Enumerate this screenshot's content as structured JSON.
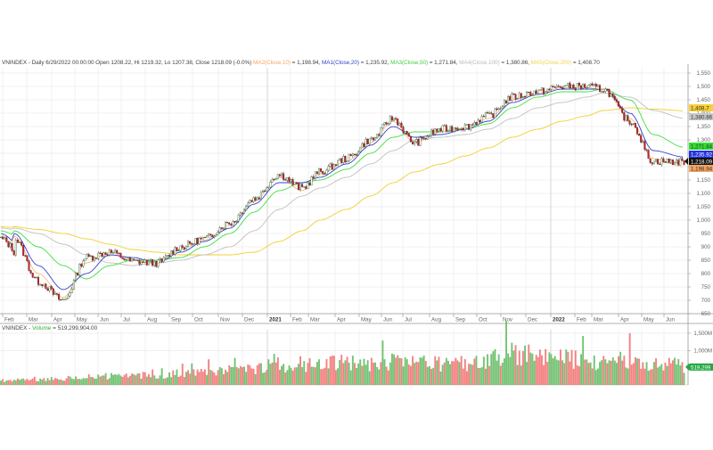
{
  "header": {
    "symbol": "VNINDEX",
    "summary": "VNINDEX - Daily 6/29/2022 00:00:00 Open 1208.22, Hi 1219.32, Lo 1207.38, Close 1218.09 (-0.0%)",
    "ma2_label": "MA2(Close,10)",
    "ma2_value": " = 1,198.94, ",
    "ma1_label": "MA1(Close,20)",
    "ma1_value": " = 1,235.92, ",
    "ma3_label": "MA3(Close,50)",
    "ma3_value": " = 1,271.84, ",
    "ma4_label": "MA4(Close,100)",
    "ma4_value": " = 1,380.86, ",
    "ma5_label": "MA5(Close,200)",
    "ma5_value": " = 1,408.70"
  },
  "volume_panel": {
    "prefix": "VNINDEX - ",
    "label": "Volume",
    "value": " = 519,299,904.00",
    "tag": "519,299",
    "axis_ticks": [
      "1,500M",
      "1,000M"
    ]
  },
  "price_tags": {
    "ma5": {
      "text": "1,408.7",
      "color": "#f7d038"
    },
    "ma4": {
      "text": "1,380.86",
      "color": "#c8c8c8"
    },
    "ma3": {
      "text": "1,271.84",
      "color": "#33dd33"
    },
    "ma1": {
      "text": "1,235.92",
      "color": "#2233dd"
    },
    "close": {
      "text": "1,218.09",
      "color": "#111111"
    },
    "ma2": {
      "text": "1,198.94",
      "color": "#f5a462"
    }
  },
  "colors": {
    "up_volume": "#5cb85c",
    "down_volume": "#f26b6b",
    "grid": "#e6e6e6",
    "ma1": "#3344cc",
    "ma2": "#f5a462",
    "ma3": "#44dd44",
    "ma4": "#c0c0c0",
    "ma5": "#f0d030"
  },
  "chart_data": {
    "type": "line",
    "title": "VNINDEX - Daily",
    "xlabel": "",
    "ylabel": "",
    "ylim": [
      650,
      1550
    ],
    "y_ticks": [
      1550,
      1500,
      1450,
      1400,
      1350,
      1300,
      1250,
      1200,
      1150,
      1100,
      1050,
      1000,
      950,
      900,
      850,
      800,
      750,
      700,
      650
    ],
    "x_ticks": [
      "Feb",
      "Mar",
      "Apr",
      "May",
      "Jun",
      "Jul",
      "Aug",
      "Sep",
      "Oct",
      "Nov",
      "Dec",
      "2021",
      "Feb",
      "Mar",
      "Apr",
      "May",
      "Jun",
      "Jul",
      "Aug",
      "Sep",
      "Oct",
      "Nov",
      "Dec",
      "2022",
      "Feb",
      "Mar",
      "Apr",
      "May",
      "Jun"
    ],
    "grid": true,
    "legend_position": "top-left header",
    "x": [
      "2020-02",
      "2020-03",
      "2020-04",
      "2020-05",
      "2020-06",
      "2020-07",
      "2020-08",
      "2020-09",
      "2020-10",
      "2020-11",
      "2020-12",
      "2021-01",
      "2021-02",
      "2021-03",
      "2021-04",
      "2021-05",
      "2021-06",
      "2021-07",
      "2021-08",
      "2021-09",
      "2021-10",
      "2021-11",
      "2021-12",
      "2022-01",
      "2022-02",
      "2022-03",
      "2022-04",
      "2022-05",
      "2022-06"
    ],
    "series": [
      {
        "name": "VNINDEX Close",
        "values": [
          930,
          770,
          700,
          860,
          880,
          845,
          840,
          900,
          930,
          990,
          1080,
          1170,
          1120,
          1180,
          1230,
          1300,
          1380,
          1290,
          1340,
          1350,
          1390,
          1460,
          1480,
          1500,
          1500,
          1490,
          1370,
          1220,
          1218
        ]
      },
      {
        "name": "MA2(Close,10)",
        "values": [
          940,
          800,
          710,
          840,
          880,
          850,
          840,
          890,
          925,
          980,
          1070,
          1160,
          1110,
          1170,
          1220,
          1290,
          1370,
          1290,
          1330,
          1345,
          1380,
          1450,
          1475,
          1495,
          1495,
          1490,
          1380,
          1230,
          1198.94
        ]
      },
      {
        "name": "MA1(Close,20)",
        "values": [
          950,
          830,
          740,
          800,
          870,
          860,
          840,
          880,
          920,
          970,
          1060,
          1140,
          1140,
          1160,
          1210,
          1280,
          1350,
          1310,
          1320,
          1340,
          1370,
          1440,
          1470,
          1490,
          1490,
          1490,
          1400,
          1260,
          1235.92
        ]
      },
      {
        "name": "MA3(Close,50)",
        "values": [
          960,
          900,
          830,
          780,
          830,
          850,
          850,
          860,
          900,
          950,
          1030,
          1110,
          1140,
          1150,
          1190,
          1250,
          1310,
          1330,
          1330,
          1340,
          1360,
          1420,
          1460,
          1480,
          1480,
          1490,
          1450,
          1320,
          1271.84
        ]
      },
      {
        "name": "MA4(Close,100)",
        "values": [
          970,
          950,
          910,
          870,
          840,
          830,
          840,
          850,
          870,
          900,
          960,
          1040,
          1090,
          1120,
          1160,
          1210,
          1260,
          1300,
          1310,
          1320,
          1340,
          1380,
          1420,
          1440,
          1460,
          1475,
          1460,
          1410,
          1380.86
        ]
      },
      {
        "name": "MA5(Close,200)",
        "values": [
          975,
          965,
          950,
          930,
          910,
          890,
          880,
          870,
          870,
          870,
          880,
          920,
          960,
          1000,
          1040,
          1090,
          1140,
          1180,
          1210,
          1240,
          1270,
          1310,
          1340,
          1370,
          1390,
          1410,
          1420,
          1415,
          1408.7
        ]
      }
    ],
    "volume": {
      "type": "bar",
      "ylim": [
        0,
        1600
      ],
      "units": "M",
      "ticks": [
        1500,
        1000
      ],
      "last_value": 519299904.0
    }
  }
}
